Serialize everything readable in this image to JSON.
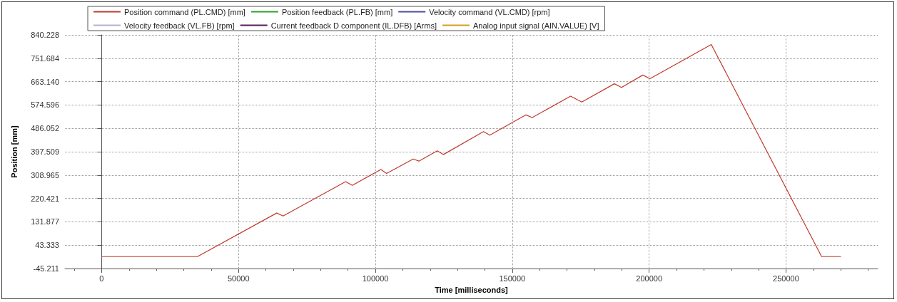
{
  "chart_data": {
    "type": "line",
    "xlabel": "Time [milliseconds]",
    "ylabel": "Position [mm]",
    "xlim": [
      -13400,
      283500
    ],
    "xticks": [
      0,
      50000,
      100000,
      150000,
      200000,
      250000
    ],
    "ylim": [
      -45.211,
      840.228
    ],
    "yticks": [
      {
        "value": -45.211,
        "label": "-45.211"
      },
      {
        "value": 43.333,
        "label": "43.333"
      },
      {
        "value": 131.877,
        "label": "131.877"
      },
      {
        "value": 220.421,
        "label": "220.421"
      },
      {
        "value": 308.965,
        "label": "308.965"
      },
      {
        "value": 397.509,
        "label": "397.509"
      },
      {
        "value": 486.052,
        "label": "486.052"
      },
      {
        "value": 574.596,
        "label": "574.596"
      },
      {
        "value": 663.14,
        "label": "663.140"
      },
      {
        "value": 751.684,
        "label": "751.684"
      },
      {
        "value": 840.228,
        "label": "840.228"
      }
    ],
    "grid": true,
    "legend": "top",
    "marker": "none",
    "line_style": "solid",
    "series": [
      {
        "name": "Position command (PL.CMD) [mm]",
        "color": "#c0392b",
        "x": [
          0,
          35000,
          63950,
          66300,
          89130,
          91570,
          102000,
          104100,
          113800,
          115900,
          122600,
          124900,
          139500,
          141800,
          155000,
          157300,
          171300,
          175400,
          187300,
          189900,
          197700,
          200300,
          222700,
          263000,
          270100
        ],
        "values": [
          0,
          0,
          165,
          154,
          284,
          270,
          330,
          315,
          370,
          362,
          401,
          387,
          474,
          460,
          537,
          527,
          608,
          586,
          655,
          641,
          688,
          674,
          804,
          0,
          0
        ]
      },
      {
        "name": "Position feedback (PL.FB) [mm]",
        "color": "#2ca02c"
      },
      {
        "name": "Velocity command (VL.CMD) [rpm]",
        "color": "#4a4aa0"
      },
      {
        "name": "Velocity feedback (VL.FB) [rpm]",
        "color": "#b8b0d0"
      },
      {
        "name": "Current feedback D component (IL.DFB) [Arms]",
        "color": "#5a1a5a"
      },
      {
        "name": "Analog input signal (AIN.VALUE) [V]",
        "color": "#d4a020"
      }
    ]
  }
}
